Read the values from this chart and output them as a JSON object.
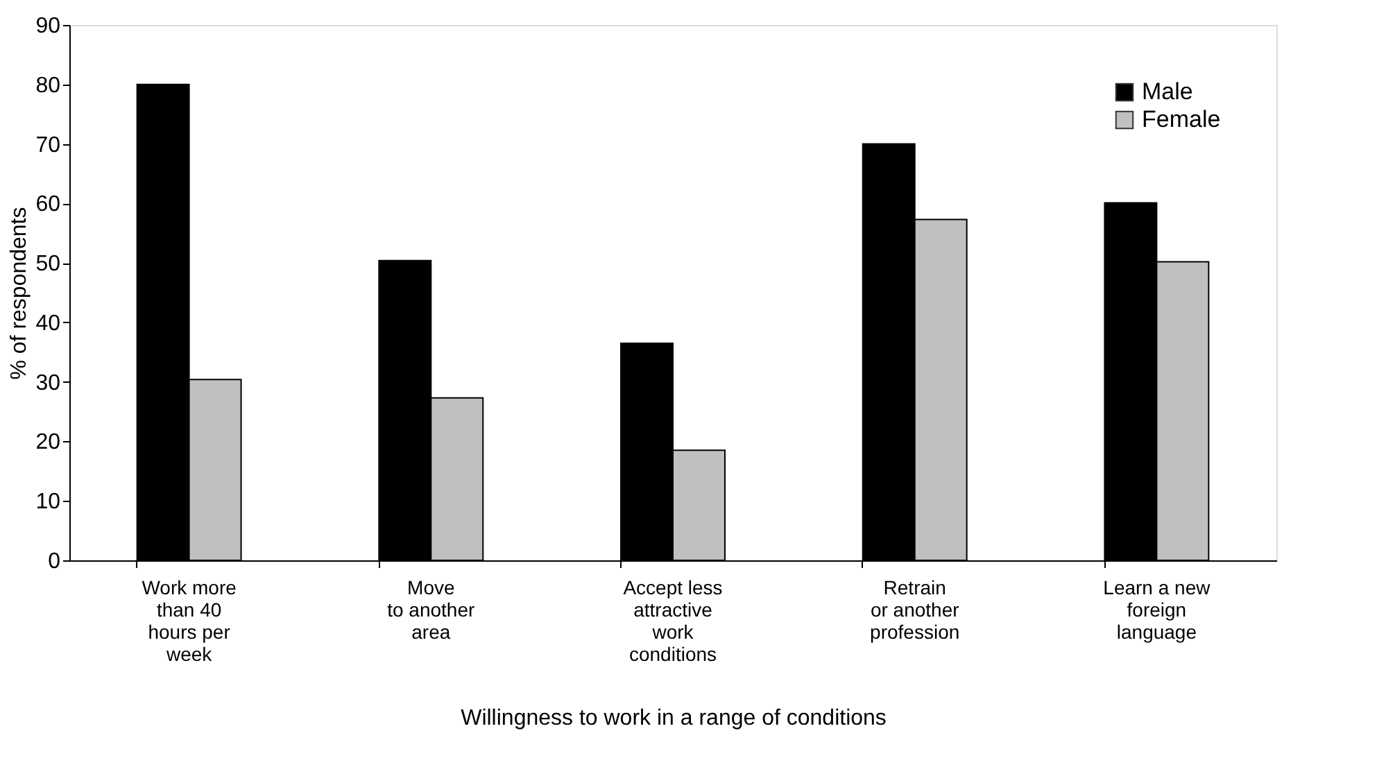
{
  "chart_data": {
    "type": "bar",
    "xlabel": "Willingness to work in a range of  conditions",
    "ylabel": "% of respondents",
    "categories": [
      "Work more\nthan 40\nhours per\nweek",
      "Move\nto another\narea",
      "Accept  less\nattractive\nwork\nconditions",
      "Retrain\nor another\nprofession",
      "Learn a new\nforeign\nlanguage"
    ],
    "series": [
      {
        "name": "Male",
        "color": "#000000",
        "values": [
          80,
          50.4,
          36.5,
          70,
          60.1
        ]
      },
      {
        "name": "Female",
        "color": "#c0c0c0",
        "values": [
          30.4,
          27.3,
          18.5,
          57.3,
          50.2
        ]
      }
    ],
    "ylim": [
      0,
      90
    ],
    "yticks": [
      0,
      10,
      20,
      30,
      40,
      50,
      60,
      70,
      80,
      90
    ],
    "grid": false,
    "legend": "top right"
  }
}
